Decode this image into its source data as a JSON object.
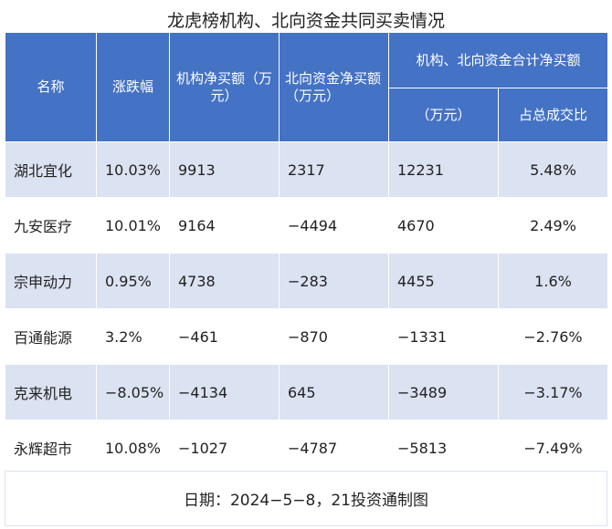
{
  "title": "龙虎榜机构、北向资金共同买卖情况",
  "headers": {
    "name": "名称",
    "change": "涨跌幅",
    "inst_net_buy": "机构净买额（万元）",
    "north_net_buy": "北向资金净买额（万元）",
    "combined_group": "机构、北向资金合计净买额",
    "combined_amount": "（万元）",
    "share_of_turnover": "占总成交比"
  },
  "rows": [
    {
      "name": "湖北宜化",
      "change": "10.03%",
      "inst": "9913",
      "north": "2317",
      "total": "12231",
      "ratio": "5.48%"
    },
    {
      "name": "九安医疗",
      "change": "10.01%",
      "inst": "9164",
      "north": "−4494",
      "total": "4670",
      "ratio": "2.49%"
    },
    {
      "name": "宗申动力",
      "change": "0.95%",
      "inst": "4738",
      "north": "−283",
      "total": "4455",
      "ratio": "1.6%"
    },
    {
      "name": "百通能源",
      "change": "3.2%",
      "inst": "−461",
      "north": "−870",
      "total": "−1331",
      "ratio": "−2.76%"
    },
    {
      "name": "克来机电",
      "change": "−8.05%",
      "inst": "−4134",
      "north": "645",
      "total": "−3489",
      "ratio": "−3.17%"
    },
    {
      "name": "永辉超市",
      "change": "10.08%",
      "inst": "−1027",
      "north": "−4787",
      "total": "−5813",
      "ratio": "−7.49%"
    }
  ],
  "footer": "日期：2024−5−8，21投资通制图",
  "colors": {
    "header_bg": "#4472c4",
    "band_bg": "#dbe2f1"
  }
}
